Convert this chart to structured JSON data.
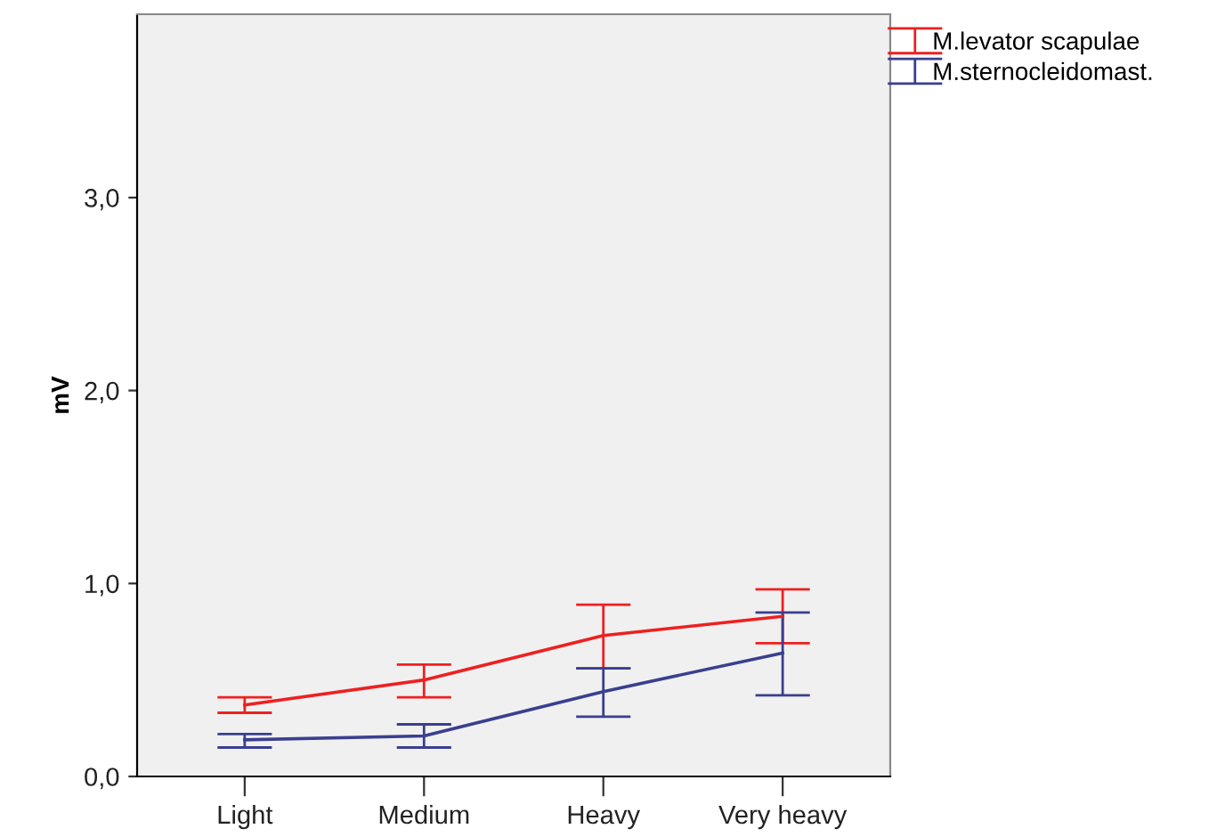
{
  "chart_data": {
    "type": "line",
    "ylabel": "mV",
    "categories": [
      "Light",
      "Medium",
      "Heavy",
      "Very heavy"
    ],
    "series": [
      {
        "name": "M.levator scapulae",
        "color": "#ee2020",
        "values": [
          0.37,
          0.5,
          0.73,
          0.83
        ],
        "errors": [
          [
            0.33,
            0.41
          ],
          [
            0.41,
            0.58
          ],
          [
            0.56,
            0.89
          ],
          [
            0.69,
            0.97
          ]
        ]
      },
      {
        "name": "M.sternocleidomast.",
        "color": "#3a3f8f",
        "values": [
          0.19,
          0.21,
          0.44,
          0.64
        ],
        "errors": [
          [
            0.15,
            0.22
          ],
          [
            0.15,
            0.27
          ],
          [
            0.31,
            0.56
          ],
          [
            0.42,
            0.85
          ]
        ]
      }
    ],
    "ylim": [
      0,
      3.95
    ],
    "yticks": [
      {
        "value": 0,
        "label": "0,0"
      },
      {
        "value": 1,
        "label": "1,0"
      },
      {
        "value": 2,
        "label": "2,0"
      },
      {
        "value": 3,
        "label": "3,0"
      }
    ],
    "grid": false,
    "legend": "top right",
    "marker": "none",
    "line_style": "solid"
  }
}
